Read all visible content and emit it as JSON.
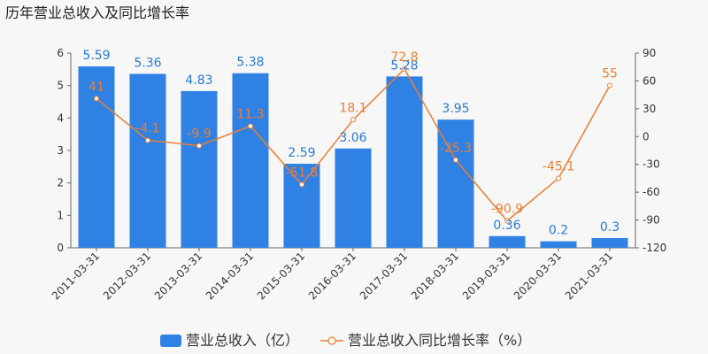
{
  "chart_data": {
    "type": "bar",
    "title": "历年营业总收入及同比增长率",
    "categories": [
      "2011-03-31",
      "2012-03-31",
      "2013-03-31",
      "2014-03-31",
      "2015-03-31",
      "2016-03-31",
      "2017-03-31",
      "2018-03-31",
      "2019-03-31",
      "2020-03-31",
      "2021-03-31"
    ],
    "series": [
      {
        "name": "营业总收入（亿）",
        "type": "bar",
        "axis": "left",
        "values": [
          5.59,
          5.36,
          4.83,
          5.38,
          2.59,
          3.06,
          5.28,
          3.95,
          0.36,
          0.2,
          0.3
        ],
        "labels": [
          "5.59",
          "5.36",
          "4.83",
          "5.38",
          "2.59",
          "3.06",
          "5.28",
          "3.95",
          "0.36",
          "0.2",
          "0.3"
        ]
      },
      {
        "name": "营业总收入同比增长率（%）",
        "type": "line",
        "axis": "right",
        "values": [
          41,
          -4.1,
          -9.9,
          11.3,
          -51.8,
          18.1,
          72.8,
          -25.3,
          -90.9,
          -45.1,
          55
        ],
        "labels": [
          "41",
          "-4.1",
          "-9.9",
          "11.3",
          "-51.8",
          "18.1",
          "72.8",
          "-25.3",
          "-90.9",
          "-45.1",
          "55"
        ]
      }
    ],
    "y_left": {
      "min": 0,
      "max": 6,
      "ticks": [
        0,
        1,
        2,
        3,
        4,
        5,
        6
      ]
    },
    "y_right": {
      "min": -120,
      "max": 90,
      "ticks": [
        -120,
        -90,
        -60,
        -30,
        0,
        30,
        60,
        90
      ]
    },
    "legend_position": "bottom",
    "colors": {
      "bar": "#2f82e4",
      "line": "#ed7d31",
      "bar_label": "#2a7ad9"
    }
  }
}
